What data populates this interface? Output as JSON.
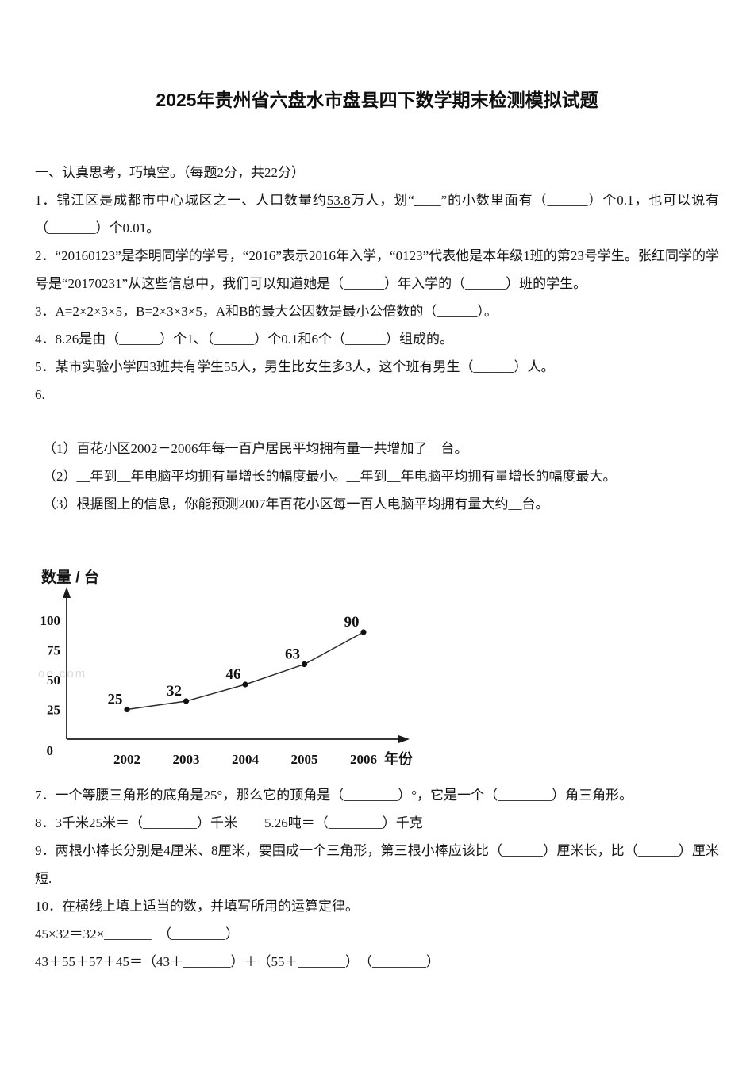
{
  "title": "2025年贵州省六盘水市盘县四下数学期末检测模拟试题",
  "section_heading": "一、认真思考，巧填空。（每题2分，共22分）",
  "q1": {
    "pre": "1．锦江区是成都市中心城区之一、人口数量约",
    "underline": "53.8",
    "post": "万人，划“____”的小数里面有（______）个0.1，也可以说有（_______）个0.01。"
  },
  "q2": "2．“20160123”是李明同学的学号，“2016”表示2016年入学，“0123”代表他是本年级1班的第23号学生。张红同学的学号是“20170231”从这些信息中，我们可以知道她是（______）年入学的（______）班的学生。",
  "q3": "3．A=2×2×3×5，B=2×3×3×5，A和B的最大公因数是最小公倍数的（______）。",
  "q4": "4．8.26是由（______）个1、（______）个0.1和6个（______）组成的。",
  "q5": "5．某市实验小学四3班共有学生55人，男生比女生多3人，这个班有男生（______）人。",
  "q6": {
    "label": "6.",
    "sub1": "（1）百花小区2002－2006年每一百户居民平均拥有量一共增加了__台。",
    "sub2": "（2）__年到__年电脑平均拥有量增长的幅度最小。__年到__年电脑平均拥有量增长的幅度最大。",
    "sub3": "（3）根据图上的信息，你能预测2007年百花小区每一百人电脑平均拥有量大约__台。"
  },
  "q7": "7．一个等腰三角形的底角是25°，那么它的顶角是（________）°，它是一个（________）角三角形。",
  "q8": "8．3千米25米＝（________）千米　　5.26吨＝（________）千克",
  "q9": "9．两根小棒长分别是4厘米、8厘米，要围成一个三角形，第三根小棒应该比（______）厘米长，比（______）厘米短.",
  "q10": {
    "label": "10．在横线上填上适当的数，并填写所用的运算定律。",
    "line1": "45×32＝32×_______　（________）",
    "line2": "43＋55＋57＋45＝（43＋_______）＋（55＋_______）　（________）"
  },
  "watermark": "oo.com",
  "chart_data": {
    "type": "line",
    "ylabel": "数量 / 台",
    "xlabel": "年份",
    "categories": [
      "2002",
      "2003",
      "2004",
      "2005",
      "2006"
    ],
    "values": [
      25,
      32,
      46,
      63,
      90
    ],
    "yticks": [
      0,
      25,
      50,
      75,
      100
    ],
    "ylim": [
      0,
      115
    ],
    "grid": false,
    "point_labels_shown": true
  }
}
